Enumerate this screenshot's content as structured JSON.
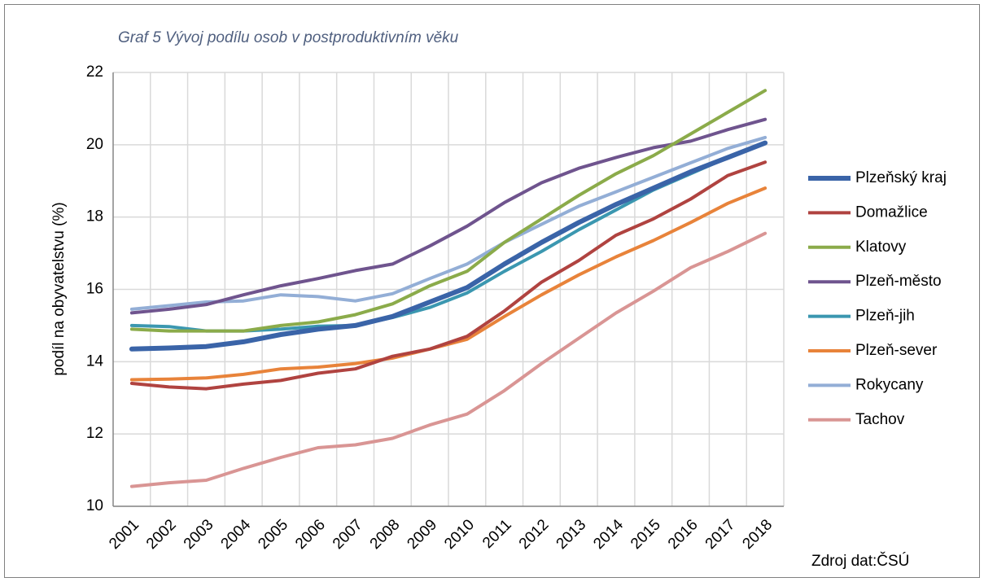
{
  "chart_data": {
    "type": "line",
    "title": "Graf 5 Vývoj podílu osob v postproduktivním věku",
    "y_label": "podíl na obyvatelstvu (%)",
    "source": "Zdroj dat:ČSÚ",
    "categories": [
      "2001",
      "2002",
      "2003",
      "2004",
      "2005",
      "2006",
      "2007",
      "2008",
      "2009",
      "2010",
      "2011",
      "2012",
      "2013",
      "2014",
      "2015",
      "2016",
      "2017",
      "2018"
    ],
    "ylim": [
      10,
      22
    ],
    "yticks": [
      10,
      12,
      14,
      16,
      18,
      20,
      22
    ],
    "grid": true,
    "legend": "right",
    "series": [
      {
        "name": "Plzeňský kraj",
        "color": "#3a64a8",
        "values": [
          14.35,
          14.38,
          14.42,
          14.55,
          14.75,
          14.9,
          15.0,
          15.25,
          15.65,
          16.05,
          16.7,
          17.3,
          17.85,
          18.35,
          18.8,
          19.25,
          19.65,
          20.05
        ]
      },
      {
        "name": "Domažlice",
        "color": "#b04340",
        "values": [
          13.4,
          13.3,
          13.25,
          13.38,
          13.48,
          13.68,
          13.8,
          14.15,
          14.35,
          14.7,
          15.4,
          16.2,
          16.8,
          17.5,
          17.95,
          18.5,
          19.15,
          19.52
        ]
      },
      {
        "name": "Klatovy",
        "color": "#8bab4a",
        "values": [
          14.9,
          14.85,
          14.85,
          14.85,
          15.0,
          15.1,
          15.3,
          15.6,
          16.1,
          16.5,
          17.3,
          17.95,
          18.6,
          19.2,
          19.7,
          20.3,
          20.9,
          21.5
        ]
      },
      {
        "name": "Plzeň-město",
        "color": "#6f548e",
        "values": [
          15.35,
          15.45,
          15.58,
          15.85,
          16.1,
          16.3,
          16.52,
          16.7,
          17.2,
          17.75,
          18.4,
          18.95,
          19.35,
          19.65,
          19.92,
          20.1,
          20.42,
          20.7
        ]
      },
      {
        "name": "Plzeň-jih",
        "color": "#3b97b0",
        "values": [
          15.0,
          14.97,
          14.85,
          14.85,
          14.9,
          14.98,
          15.0,
          15.22,
          15.5,
          15.9,
          16.5,
          17.05,
          17.65,
          18.2,
          18.75,
          19.2,
          19.65,
          20.05
        ]
      },
      {
        "name": "Plzeň-sever",
        "color": "#e8833a",
        "values": [
          13.5,
          13.52,
          13.55,
          13.65,
          13.8,
          13.85,
          13.95,
          14.1,
          14.35,
          14.62,
          15.25,
          15.85,
          16.4,
          16.9,
          17.35,
          17.85,
          18.38,
          18.8
        ]
      },
      {
        "name": "Rokycany",
        "color": "#93aed6",
        "values": [
          15.45,
          15.55,
          15.65,
          15.68,
          15.85,
          15.8,
          15.68,
          15.88,
          16.3,
          16.7,
          17.3,
          17.8,
          18.3,
          18.7,
          19.1,
          19.5,
          19.9,
          20.2
        ]
      },
      {
        "name": "Tachov",
        "color": "#d99594",
        "values": [
          10.55,
          10.65,
          10.72,
          11.05,
          11.35,
          11.62,
          11.7,
          11.88,
          12.25,
          12.55,
          13.2,
          13.95,
          14.65,
          15.35,
          15.95,
          16.6,
          17.05,
          17.55
        ]
      }
    ]
  }
}
